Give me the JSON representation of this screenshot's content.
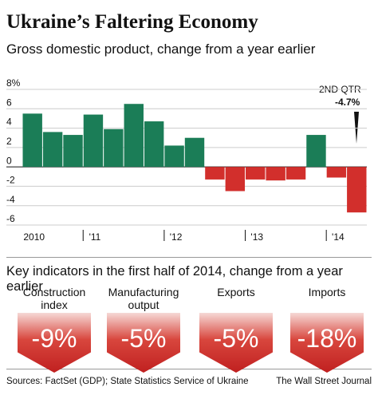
{
  "chart_data": {
    "type": "bar",
    "title": "Ukraine’s Faltering Economy",
    "subtitle": "Gross domestic product, change from a year earlier",
    "categories": [
      "2010",
      null,
      null,
      "'11",
      null,
      null,
      null,
      "'12",
      null,
      null,
      null,
      "'13",
      null,
      null,
      null,
      "'14",
      null
    ],
    "values": [
      5.5,
      3.6,
      3.3,
      5.4,
      3.9,
      6.5,
      4.7,
      2.2,
      3.0,
      -1.3,
      -2.5,
      -1.3,
      -1.4,
      -1.3,
      3.3,
      -1.1,
      -4.7
    ],
    "positive_color": "#1b7d57",
    "negative_color": "#d22f2c",
    "ylim": [
      -6,
      8
    ],
    "yticks": [
      -6,
      -4,
      -2,
      0,
      2,
      4,
      6,
      {
        "value": 8,
        "label": "8%"
      }
    ],
    "grid": true,
    "annotations": [
      "2ND QTR",
      "-4.7%"
    ]
  },
  "indicators": {
    "title": "Key indicators in the first half of 2014, change from a year earlier",
    "items": [
      {
        "label": "Construction index",
        "value": "-9%"
      },
      {
        "label": "Manufacturing output",
        "value": "-5%"
      },
      {
        "label": "Exports",
        "value": "-5%"
      },
      {
        "label": "Imports",
        "value": "-18%"
      }
    ]
  },
  "footer": {
    "source": "Sources: FactSet (GDP); State Statistics Service of Ukraine",
    "credit": "The Wall Street Journal"
  }
}
